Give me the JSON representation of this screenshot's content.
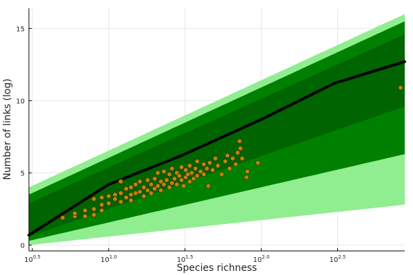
{
  "chart_data": {
    "type": "scatter",
    "xlabel": "Species richness",
    "ylabel": "Number of links (log)",
    "x_scale": "log10",
    "x_ticks": [
      {
        "base": "10",
        "exp": "0.5",
        "value": 3.162
      },
      {
        "base": "10",
        "exp": "1.0",
        "value": 10
      },
      {
        "base": "10",
        "exp": "1.5",
        "value": 31.62
      },
      {
        "base": "10",
        "exp": "2.0",
        "value": 100
      },
      {
        "base": "10",
        "exp": "2.5",
        "value": 316.2
      }
    ],
    "y_ticks": [
      0,
      5,
      10,
      15
    ],
    "xlim": [
      3.0,
      871
    ],
    "ylim": [
      -0.4,
      16.4
    ],
    "grid": true,
    "legend": "none",
    "colors": {
      "band_outer": "#90ee90",
      "band_middle": "#008000",
      "band_inner": "#006400",
      "median_line": "#000000",
      "points_fill": "#b8860b",
      "points_stroke": "#3a2a00"
    },
    "bands": [
      {
        "level": "outer",
        "x": [
          3.0,
          871
        ],
        "upper": [
          4.0,
          16.0
        ],
        "lower": [
          0.0,
          2.8
        ]
      },
      {
        "level": "middle",
        "x": [
          3.0,
          871
        ],
        "upper": [
          3.5,
          15.5
        ],
        "lower": [
          0.3,
          6.3
        ]
      },
      {
        "level": "inner",
        "x": [
          3.0,
          871
        ],
        "upper": [
          2.9,
          14.6
        ],
        "lower": [
          0.6,
          9.6
        ]
      }
    ],
    "median_line": {
      "x": [
        3.0,
        10,
        30,
        100,
        300,
        871
      ],
      "y": [
        0.7,
        4.2,
        6.2,
        8.7,
        11.2,
        12.7
      ]
    },
    "points": [
      [
        5,
        1.9
      ],
      [
        6,
        2.0
      ],
      [
        6,
        2.2
      ],
      [
        7,
        2.0
      ],
      [
        7,
        2.4
      ],
      [
        8,
        2.1
      ],
      [
        8,
        2.5
      ],
      [
        8,
        3.2
      ],
      [
        9,
        2.4
      ],
      [
        9,
        2.8
      ],
      [
        9,
        3.3
      ],
      [
        10,
        2.9
      ],
      [
        10,
        3.4
      ],
      [
        11,
        3.2
      ],
      [
        11,
        3.5
      ],
      [
        12,
        3.0
      ],
      [
        12,
        3.6
      ],
      [
        12,
        4.4
      ],
      [
        13,
        3.3
      ],
      [
        13,
        3.9
      ],
      [
        14,
        3.5
      ],
      [
        14,
        4.0
      ],
      [
        14,
        3.1
      ],
      [
        15,
        3.6
      ],
      [
        15,
        4.2
      ],
      [
        16,
        3.7
      ],
      [
        16,
        4.4
      ],
      [
        17,
        3.4
      ],
      [
        17,
        4.0
      ],
      [
        18,
        3.8
      ],
      [
        18,
        4.5
      ],
      [
        19,
        3.6
      ],
      [
        19,
        4.2
      ],
      [
        20,
        3.9
      ],
      [
        20,
        4.6
      ],
      [
        21,
        4.1
      ],
      [
        21,
        5.0
      ],
      [
        22,
        3.8
      ],
      [
        22,
        4.4
      ],
      [
        23,
        4.2
      ],
      [
        23,
        5.1
      ],
      [
        24,
        4.5
      ],
      [
        25,
        4.0
      ],
      [
        25,
        4.9
      ],
      [
        26,
        4.3
      ],
      [
        26,
        5.3
      ],
      [
        27,
        4.6
      ],
      [
        28,
        4.2
      ],
      [
        28,
        5.0
      ],
      [
        29,
        4.8
      ],
      [
        30,
        4.5
      ],
      [
        30,
        5.4
      ],
      [
        31,
        4.1
      ],
      [
        32,
        4.7
      ],
      [
        32,
        5.2
      ],
      [
        33,
        4.9
      ],
      [
        34,
        4.4
      ],
      [
        34,
        5.5
      ],
      [
        35,
        5.0
      ],
      [
        36,
        4.6
      ],
      [
        37,
        5.3
      ],
      [
        38,
        4.8
      ],
      [
        38,
        5.8
      ],
      [
        40,
        5.1
      ],
      [
        42,
        4.9
      ],
      [
        42,
        5.6
      ],
      [
        44,
        5.3
      ],
      [
        45,
        4.1
      ],
      [
        46,
        5.7
      ],
      [
        48,
        5.2
      ],
      [
        50,
        6.0
      ],
      [
        52,
        5.5
      ],
      [
        55,
        4.9
      ],
      [
        58,
        5.8
      ],
      [
        60,
        6.2
      ],
      [
        62,
        5.3
      ],
      [
        65,
        6.0
      ],
      [
        68,
        5.6
      ],
      [
        70,
        6.4
      ],
      [
        72,
        7.2
      ],
      [
        73,
        6.7
      ],
      [
        75,
        6.0
      ],
      [
        80,
        4.7
      ],
      [
        81,
        5.1
      ],
      [
        95,
        5.7
      ],
      [
        818,
        10.9
      ]
    ]
  }
}
